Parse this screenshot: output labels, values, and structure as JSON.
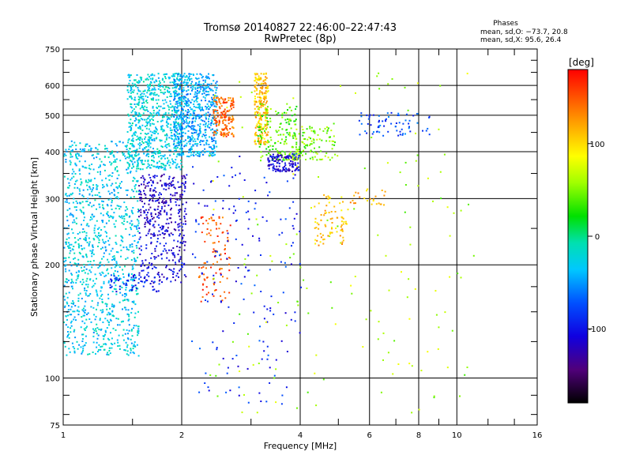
{
  "chart_data": {
    "type": "scatter",
    "title": "Tromsø 20140827 22:46:00–22:47:43",
    "subtitle": "RwPretec (8p)",
    "xlabel": "Frequency [MHz]",
    "ylabel": "Stationary phase Virtual Height [km]",
    "x_scale": "log2",
    "y_scale": "log",
    "xlim": [
      1,
      16
    ],
    "ylim": [
      75,
      750
    ],
    "x_ticks": [
      1,
      2,
      4,
      6,
      8,
      10,
      16
    ],
    "y_ticks": [
      75,
      100,
      200,
      300,
      400,
      500,
      600,
      750
    ],
    "grid": true,
    "phase_info": {
      "header": "Phases",
      "line1": "mean, sd,O: −73.7, 20.8",
      "line2": "mean, sd,X:  95.6, 26.4"
    },
    "colorbar": {
      "label": "[deg]",
      "range": [
        -180,
        180
      ],
      "ticks": [
        100,
        0,
        -100
      ]
    },
    "clusters": [
      {
        "x": [
          1.0,
          1.55
        ],
        "y": [
          115,
          430
        ],
        "phase": -30,
        "n": 1100
      },
      {
        "x": [
          1.45,
          2.0
        ],
        "y": [
          360,
          650
        ],
        "phase": -25,
        "n": 700
      },
      {
        "x": [
          1.9,
          2.45
        ],
        "y": [
          390,
          650
        ],
        "phase": -45,
        "n": 650
      },
      {
        "x": [
          1.55,
          2.05
        ],
        "y": [
          240,
          350
        ],
        "phase": -115,
        "n": 280
      },
      {
        "x": [
          1.55,
          2.05
        ],
        "y": [
          180,
          240
        ],
        "phase": -105,
        "n": 130
      },
      {
        "x": [
          1.3,
          1.75
        ],
        "y": [
          170,
          190
        ],
        "phase": -95,
        "n": 60
      },
      {
        "x": [
          2.4,
          2.7
        ],
        "y": [
          440,
          560
        ],
        "phase": 145,
        "n": 170
      },
      {
        "x": [
          2.2,
          2.65
        ],
        "y": [
          160,
          270
        ],
        "phase": 150,
        "n": 100
      },
      {
        "x": [
          3.05,
          3.3
        ],
        "y": [
          420,
          650
        ],
        "phase": 110,
        "n": 230
      },
      {
        "x": [
          3.1,
          3.9
        ],
        "y": [
          380,
          540
        ],
        "phase": 40,
        "n": 160
      },
      {
        "x": [
          3.3,
          3.95
        ],
        "y": [
          355,
          395
        ],
        "phase": -110,
        "n": 130
      },
      {
        "x": [
          3.8,
          4.9
        ],
        "y": [
          380,
          470
        ],
        "phase": 50,
        "n": 110
      },
      {
        "x": [
          4.3,
          5.3
        ],
        "y": [
          225,
          310
        ],
        "phase": 110,
        "n": 80
      },
      {
        "x": [
          2.1,
          4.0
        ],
        "y": [
          85,
          400
        ],
        "phase": -90,
        "n": 170
      },
      {
        "x": [
          2.3,
          11.0
        ],
        "y": [
          80,
          650
        ],
        "phase": 60,
        "n": 160
      },
      {
        "x": [
          5.6,
          8.5
        ],
        "y": [
          440,
          510
        ],
        "phase": -75,
        "n": 70
      },
      {
        "x": [
          5.3,
          6.6
        ],
        "y": [
          290,
          320
        ],
        "phase": 115,
        "n": 25
      }
    ]
  }
}
